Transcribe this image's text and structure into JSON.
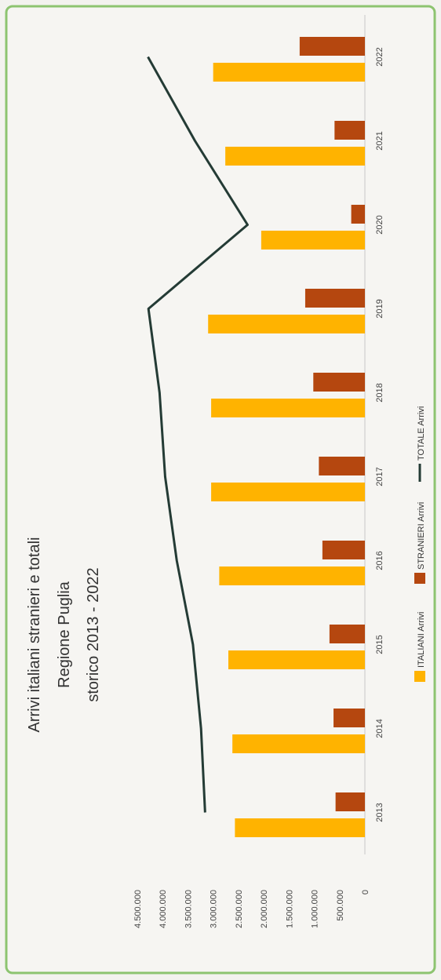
{
  "chart_data": {
    "type": "bar",
    "orientation": "rotated-90-ccw",
    "title_lines": [
      "Arrivi italiani stranieri e totali",
      "Regione Puglia",
      "storico 2013 - 2022"
    ],
    "categories": [
      "2013",
      "2014",
      "2015",
      "2016",
      "2017",
      "2018",
      "2019",
      "2020",
      "2021",
      "2022"
    ],
    "y_ticks": [
      "4.500.000",
      "4.000.000",
      "3.500.000",
      "3.000.000",
      "2.500.000",
      "2.000.000",
      "1.500.000",
      "1.000.000",
      "500.000",
      "0"
    ],
    "ylim": [
      0,
      4500000
    ],
    "series": [
      {
        "name": "ITALIANI Arrivi",
        "type": "bar",
        "values": [
          2570000,
          2620000,
          2700000,
          2880000,
          3040000,
          3040000,
          3100000,
          2050000,
          2760000,
          3000000
        ]
      },
      {
        "name": "STRANIERI Arrivi",
        "type": "bar",
        "values": [
          580000,
          620000,
          700000,
          840000,
          910000,
          1020000,
          1180000,
          270000,
          600000,
          1290000
        ]
      },
      {
        "name": "TOTALE Arrivi",
        "type": "line",
        "values": [
          3160000,
          3240000,
          3400000,
          3720000,
          3950000,
          4060000,
          4280000,
          2320000,
          3360000,
          4290000
        ]
      }
    ],
    "colors": {
      "ITALIANI Arrivi": "#ffb300",
      "STRANIERI Arrivi": "#b5470f",
      "TOTALE Arrivi": "#243b35"
    },
    "legend_position": "bottom",
    "grid": false
  }
}
